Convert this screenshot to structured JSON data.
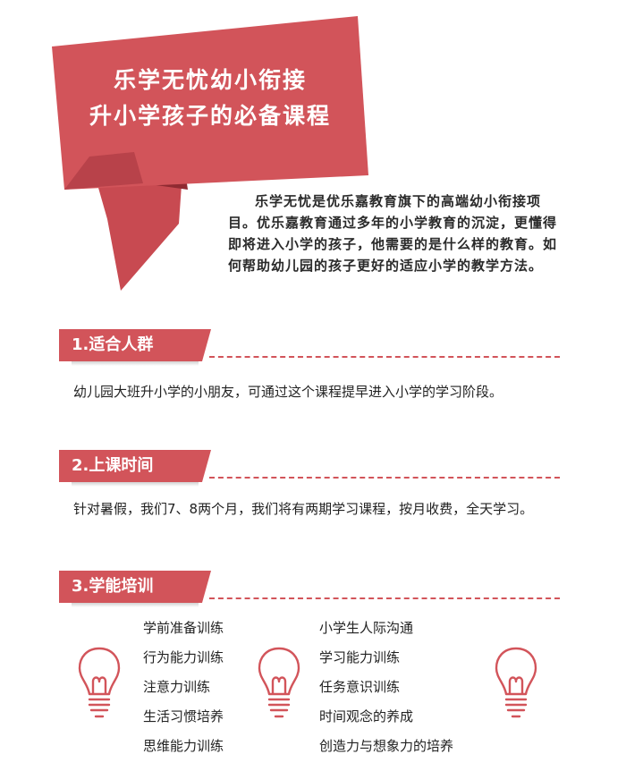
{
  "banner": {
    "title_line1": "乐学无忧幼小衔接",
    "title_line2": "升小学孩子的必备课程",
    "color": "#d2545a",
    "shadow_color": "#9e2e35"
  },
  "intro": {
    "text": "乐学无忧是优乐嘉教育旗下的高端幼小衔接项目。优乐嘉教育通过多年的小学教育的沉淀，更懂得即将进入小学的孩子，他需要的是什么样的教育。如何帮助幼儿园的孩子更好的适应小学的教学方法。"
  },
  "sections": [
    {
      "title": "1.适合人群",
      "text": "幼儿园大班升小学的小朋友，可通过这个课程提早进入小学的学习阶段。"
    },
    {
      "title": "2.上课时间",
      "text": "针对暑假，我们7、8两个月，我们将有两期学习课程，按月收费，全天学习。"
    },
    {
      "title": "3.学能培训",
      "list_left": [
        "学前准备训练",
        "行为能力训练",
        "注意力训练",
        "生活习惯培养",
        "思维能力训练"
      ],
      "list_right": [
        "小学生人际沟通",
        "学习能力训练",
        "任务意识训练",
        "时间观念的养成",
        "创造力与想象力的培养"
      ]
    }
  ],
  "icons": [
    "lightbulb-icon",
    "lightbulb-icon",
    "lightbulb-icon"
  ],
  "accent_color": "#d2545a"
}
